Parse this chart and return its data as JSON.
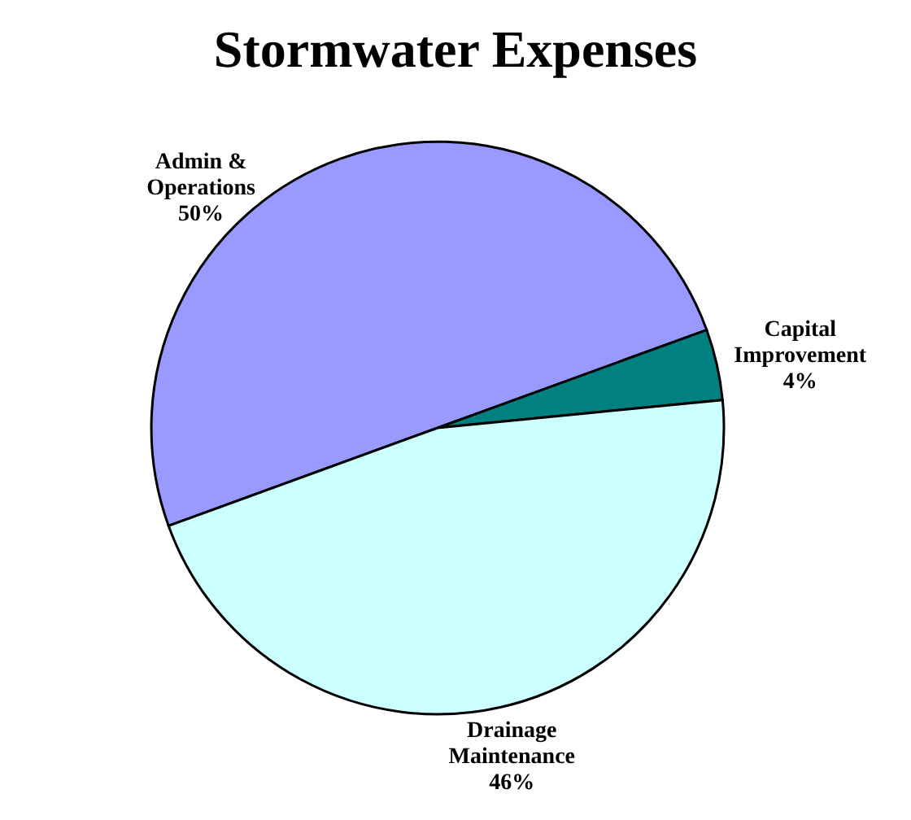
{
  "chart_data": {
    "type": "pie",
    "title": "Stormwater Expenses",
    "categories": [
      "Admin & Operations",
      "Capital Improvement",
      "Drainage Maintenance"
    ],
    "values": [
      50,
      4,
      46
    ],
    "colors": [
      "#9999ff",
      "#008080",
      "#ccffff"
    ],
    "value_labels": [
      "50%",
      "4%",
      "46%"
    ]
  }
}
